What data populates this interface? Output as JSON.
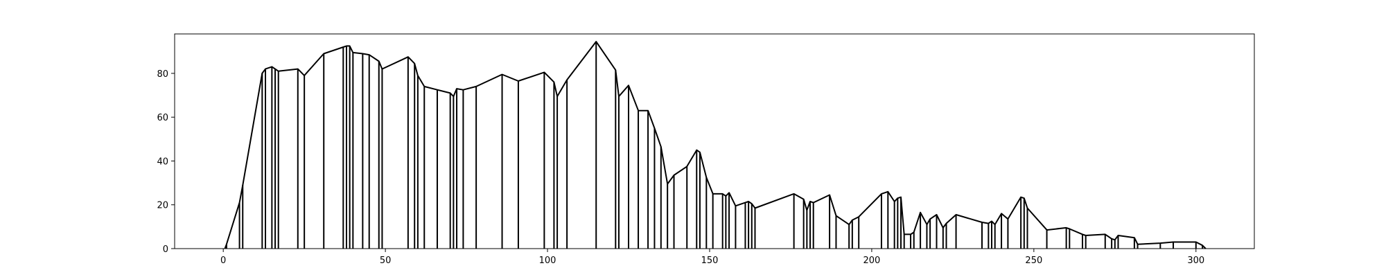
{
  "chart_data": {
    "type": "line",
    "title": "",
    "xlabel": "",
    "ylabel": "",
    "xlim": [
      -15,
      318
    ],
    "ylim": [
      0,
      98
    ],
    "grid": false,
    "x_ticks": [
      0,
      50,
      100,
      150,
      200,
      250,
      300
    ],
    "y_ticks": [
      0,
      20,
      40,
      60,
      80
    ],
    "x_tick_labels": [
      "0",
      "50",
      "100",
      "150",
      "200",
      "250",
      "300"
    ],
    "y_tick_labels": [
      "0",
      "20",
      "40",
      "60",
      "80"
    ],
    "line_color": "#000000",
    "style": "outline with vertical stems from each vertex to the baseline",
    "points": [
      [
        0.5,
        0
      ],
      [
        1,
        2
      ],
      [
        5,
        21
      ],
      [
        6,
        29
      ],
      [
        12,
        80
      ],
      [
        13,
        82
      ],
      [
        15,
        83
      ],
      [
        16,
        82
      ],
      [
        17,
        81
      ],
      [
        23,
        82
      ],
      [
        25,
        79
      ],
      [
        31,
        89
      ],
      [
        37,
        92
      ],
      [
        38,
        92.5
      ],
      [
        39,
        92.5
      ],
      [
        40,
        89.5
      ],
      [
        43,
        89
      ],
      [
        45,
        88.5
      ],
      [
        48,
        85.5
      ],
      [
        49,
        82
      ],
      [
        57,
        87.5
      ],
      [
        59,
        84.5
      ],
      [
        60,
        79
      ],
      [
        62,
        74
      ],
      [
        66,
        72.5
      ],
      [
        70,
        71
      ],
      [
        71,
        69.5
      ],
      [
        72,
        73
      ],
      [
        74,
        72.5
      ],
      [
        78,
        74
      ],
      [
        86,
        79.5
      ],
      [
        91,
        76.5
      ],
      [
        99,
        80.5
      ],
      [
        102,
        76
      ],
      [
        103,
        69.5
      ],
      [
        106,
        77
      ],
      [
        115,
        94.5
      ],
      [
        121,
        81.5
      ],
      [
        122,
        69.5
      ],
      [
        125,
        74.5
      ],
      [
        128,
        63
      ],
      [
        131,
        63
      ],
      [
        133,
        55
      ],
      [
        135,
        46.5
      ],
      [
        137,
        29.5
      ],
      [
        139,
        33.5
      ],
      [
        143,
        37.5
      ],
      [
        146,
        45
      ],
      [
        147,
        44
      ],
      [
        149,
        32.5
      ],
      [
        151,
        25
      ],
      [
        154,
        25
      ],
      [
        155,
        24
      ],
      [
        156,
        25.5
      ],
      [
        158,
        19.5
      ],
      [
        161,
        21
      ],
      [
        162,
        21.5
      ],
      [
        163,
        20.5
      ],
      [
        164,
        18.5
      ],
      [
        176,
        25
      ],
      [
        179,
        22.5
      ],
      [
        180,
        17.5
      ],
      [
        181,
        21.5
      ],
      [
        182,
        21
      ],
      [
        187,
        24.5
      ],
      [
        189,
        15
      ],
      [
        193,
        11
      ],
      [
        194,
        13
      ],
      [
        196,
        14.5
      ],
      [
        203,
        25
      ],
      [
        205,
        26
      ],
      [
        207,
        21.5
      ],
      [
        208,
        23
      ],
      [
        209,
        23.5
      ],
      [
        210,
        6.5
      ],
      [
        212,
        6.5
      ],
      [
        213,
        7.5
      ],
      [
        215,
        16.5
      ],
      [
        217,
        11
      ],
      [
        218,
        13.5
      ],
      [
        220,
        15.5
      ],
      [
        222,
        9.5
      ],
      [
        223,
        11.5
      ],
      [
        226,
        15.5
      ],
      [
        234,
        12
      ],
      [
        236,
        11.5
      ],
      [
        237,
        12.5
      ],
      [
        238,
        11
      ],
      [
        240,
        16
      ],
      [
        242,
        13.5
      ],
      [
        246,
        23.5
      ],
      [
        247,
        23
      ],
      [
        248,
        18.5
      ],
      [
        254,
        8.5
      ],
      [
        260,
        9.5
      ],
      [
        261,
        9
      ],
      [
        265,
        6.5
      ],
      [
        266,
        6
      ],
      [
        272,
        6.5
      ],
      [
        274,
        4.5
      ],
      [
        275,
        4
      ],
      [
        276,
        6
      ],
      [
        281,
        5
      ],
      [
        282,
        2
      ],
      [
        289,
        2.5
      ],
      [
        293,
        3
      ],
      [
        300,
        3
      ],
      [
        302,
        1.5
      ],
      [
        303,
        0
      ]
    ]
  }
}
